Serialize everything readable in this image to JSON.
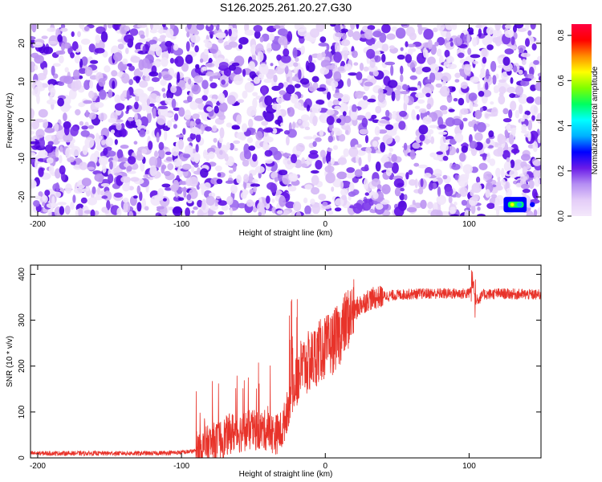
{
  "title": "S126.2025.261.20.27.G30",
  "chart_data": [
    {
      "type": "heatmap",
      "xlabel": "Height of straight line (km)",
      "ylabel": "Frequency (Hz)",
      "xlim": [
        -205,
        150
      ],
      "ylim": [
        -25,
        25
      ],
      "x_ticks": [
        "-200",
        "-100",
        "0",
        "100"
      ],
      "y_ticks": [
        "-20",
        "-10",
        "0",
        "10",
        "20"
      ],
      "colorbar": {
        "label": "Normalized spectral amplitude",
        "range": [
          0.0,
          0.85
        ],
        "ticks": [
          "0.0",
          "0.2",
          "0.4",
          "0.6",
          "0.8"
        ],
        "colors": [
          "#f4e8fb",
          "#e4cdf8",
          "#b58ef3",
          "#6a1be8",
          "#0000ff",
          "#00b0ff",
          "#00ffff",
          "#00ff60",
          "#7fff00",
          "#ffff00",
          "#ff8c00",
          "#ff0000",
          "#ff0040"
        ]
      },
      "hotspots": [
        {
          "x": 130,
          "y": -22,
          "value": 0.6
        },
        {
          "x": 135,
          "y": -22,
          "value": 0.35
        },
        {
          "x": 144,
          "y": -22,
          "value": 0.25
        }
      ]
    },
    {
      "type": "line",
      "xlabel": "Height of straight line (km)",
      "ylabel": "SNR (10 * v/v)",
      "xlim": [
        -205,
        150
      ],
      "ylim": [
        0,
        420
      ],
      "x_ticks": [
        "-200",
        "-100",
        "0",
        "100"
      ],
      "y_ticks": [
        "0",
        "100",
        "200",
        "300",
        "400"
      ],
      "line_color": "#e8332a",
      "series": [
        {
          "x": [
            -205,
            -180,
            -150,
            -120,
            -100,
            -90,
            -85,
            -80,
            -75,
            -70,
            -65,
            -60,
            -55,
            -50,
            -45,
            -40,
            -35,
            -30,
            -25,
            -22,
            -20,
            -15,
            -10,
            -5,
            0,
            5,
            10,
            15,
            20,
            25,
            30,
            40,
            50,
            60,
            70,
            80,
            90,
            100,
            103,
            105,
            110,
            120,
            130,
            140,
            150
          ],
          "y": [
            10,
            10,
            10,
            10,
            12,
            15,
            20,
            30,
            35,
            45,
            55,
            55,
            60,
            60,
            60,
            60,
            50,
            60,
            120,
            150,
            180,
            200,
            210,
            230,
            240,
            250,
            270,
            300,
            320,
            335,
            345,
            352,
            355,
            357,
            358,
            358,
            358,
            358,
            380,
            340,
            356,
            358,
            357,
            356,
            355
          ]
        }
      ]
    }
  ]
}
